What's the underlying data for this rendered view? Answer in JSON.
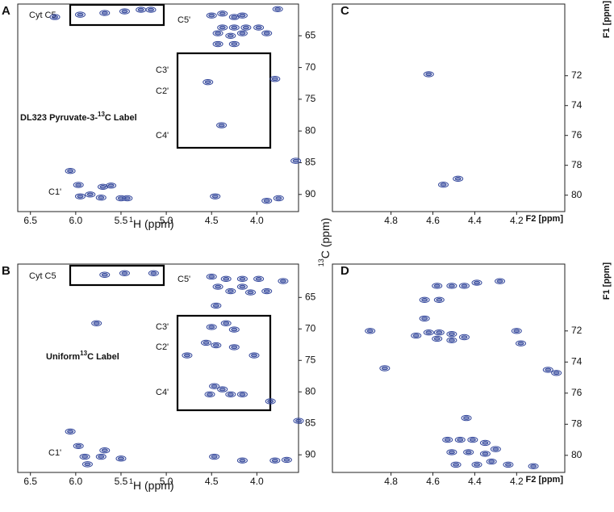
{
  "shared_ylabel": [
    "13",
    "C (ppm)"
  ],
  "chart_data": [
    {
      "type": "contour",
      "panel": "A",
      "color": "#33479b",
      "xlabel": [
        "1",
        "H (ppm)"
      ],
      "label": [
        "DL323 Pyruvate-3-",
        "13",
        "C Label"
      ],
      "annotations": [
        "Cyt C5",
        "C5'",
        "C3'",
        "C2'",
        "C4'",
        "C1'"
      ],
      "xlim": [
        6.64,
        3.54
      ],
      "ylim": [
        60,
        92.7
      ],
      "xticks": [
        6.5,
        {
          "value": 6,
          "label": "6.0"
        },
        5.5,
        {
          "value": 5,
          "label": "5.0"
        },
        4.5,
        {
          "value": 4,
          "label": "4.0"
        }
      ],
      "yticks": [
        65,
        70,
        75,
        80,
        85,
        90
      ],
      "x": [
        6.23,
        5.95,
        5.68,
        5.46,
        5.28,
        5.17,
        4.5,
        4.38,
        4.25,
        4.16,
        4.38,
        4.25,
        4.12,
        3.98,
        4.43,
        4.29,
        4.16,
        3.89,
        4.43,
        4.25,
        3.77,
        4.54,
        4.39,
        3.8,
        3.57,
        6.06,
        5.97,
        5.95,
        5.84,
        5.7,
        5.61,
        5.5,
        5.43,
        5.72,
        4.46,
        3.89,
        3.76
      ],
      "values": [
        62.05,
        61.67,
        61.41,
        61.15,
        60.9,
        60.9,
        61.8,
        61.5,
        62.05,
        61.8,
        63.7,
        63.7,
        63.7,
        63.7,
        64.6,
        65.0,
        64.6,
        64.6,
        66.3,
        66.3,
        60.8,
        72.3,
        79.1,
        71.8,
        84.7,
        86.3,
        88.5,
        90.3,
        90.0,
        88.8,
        88.6,
        90.6,
        90.6,
        90.5,
        90.3,
        91.0,
        90.6
      ]
    },
    {
      "type": "contour",
      "panel": "B",
      "color": "#33479b",
      "xlabel": [
        "1",
        "H (ppm)"
      ],
      "label": [
        "Uniform",
        "13",
        "C Label"
      ],
      "annotations": [
        "Cyt C5",
        "C5'",
        "C3'",
        "C2'",
        "C4'",
        "C1'"
      ],
      "xlim": [
        6.64,
        3.54
      ],
      "ylim": [
        59.7,
        92.8
      ],
      "xticks": [
        6.5,
        {
          "value": 6,
          "label": "6.0"
        },
        5.5,
        {
          "value": 5,
          "label": "5.0"
        },
        4.5,
        {
          "value": 4,
          "label": "4.0"
        }
      ],
      "yticks": [
        65,
        70,
        75,
        80,
        85,
        90
      ],
      "x": [
        5.68,
        5.46,
        5.14,
        4.5,
        4.34,
        4.16,
        3.98,
        4.43,
        4.16,
        4.29,
        4.07,
        3.89,
        3.71,
        4.45,
        4.5,
        4.34,
        4.25,
        4.56,
        4.45,
        4.25,
        4.03,
        4.77,
        4.47,
        4.38,
        4.52,
        4.29,
        4.16,
        5.77,
        3.85,
        3.54,
        6.06,
        5.97,
        5.9,
        5.72,
        5.68,
        5.5,
        5.87,
        4.47,
        4.16,
        3.8,
        3.67
      ],
      "values": [
        61.4,
        61.15,
        61.15,
        61.7,
        62.05,
        62.05,
        62.05,
        63.3,
        63.3,
        64.0,
        64.2,
        64.0,
        62.4,
        66.3,
        69.7,
        69.1,
        70.1,
        72.2,
        72.6,
        72.9,
        74.2,
        74.2,
        79.1,
        79.6,
        80.4,
        80.4,
        80.4,
        69.1,
        81.5,
        84.6,
        86.3,
        88.6,
        90.3,
        90.3,
        89.3,
        90.6,
        91.5,
        90.3,
        90.9,
        90.9,
        90.8
      ]
    },
    {
      "type": "contour",
      "panel": "C",
      "color": "#33479b",
      "xlabel": "F2 [ppm]",
      "ylabel": "F1 [ppm]",
      "xlim": [
        5.08,
        3.97
      ],
      "ylim": [
        67.2,
        81.1
      ],
      "xticks": [
        4.8,
        4.6,
        4.4,
        4.2
      ],
      "yticks": [
        72,
        74,
        76,
        78,
        80
      ],
      "x": [
        4.62,
        4.55,
        4.48
      ],
      "values": [
        71.9,
        79.3,
        78.9
      ]
    },
    {
      "type": "contour",
      "panel": "D",
      "color": "#33479b",
      "xlabel": "F2 [ppm]",
      "ylabel": "F1 [ppm]",
      "xlim": [
        5.08,
        3.97
      ],
      "ylim": [
        67.7,
        81.1
      ],
      "xticks": [
        4.8,
        4.6,
        4.4,
        4.2
      ],
      "yticks": [
        72,
        74,
        76,
        78,
        80
      ],
      "x": [
        4.9,
        4.83,
        4.68,
        4.62,
        4.57,
        4.51,
        4.45,
        4.58,
        4.51,
        4.64,
        4.58,
        4.51,
        4.45,
        4.39,
        4.28,
        4.57,
        4.64,
        4.2,
        4.18,
        4.05,
        4.01,
        4.44,
        4.53,
        4.47,
        4.41,
        4.35,
        4.51,
        4.43,
        4.35,
        4.3,
        4.49,
        4.39,
        4.32,
        4.24,
        4.12
      ],
      "values": [
        72.0,
        74.4,
        72.3,
        72.1,
        72.1,
        72.2,
        72.4,
        72.5,
        72.6,
        71.2,
        69.1,
        69.1,
        69.1,
        68.9,
        68.8,
        70.0,
        70.0,
        72.0,
        72.8,
        74.5,
        74.7,
        77.6,
        79.0,
        79.0,
        79.0,
        79.2,
        79.8,
        79.8,
        79.9,
        79.6,
        80.6,
        80.6,
        80.4,
        80.6,
        80.7
      ]
    }
  ]
}
